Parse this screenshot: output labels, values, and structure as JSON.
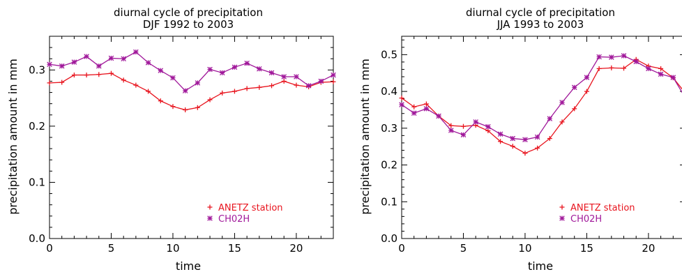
{
  "chart_data": [
    {
      "type": "line",
      "title": "diurnal cycle of precipitation",
      "subtitle": "DJF 1992 to 2003",
      "xlabel": "time",
      "ylabel": "precipitation amount in mm",
      "xlim": [
        0,
        23
      ],
      "ylim": [
        0.0,
        0.36
      ],
      "xticks": [
        0,
        5,
        10,
        15,
        20
      ],
      "xtick_labels": [
        "0",
        "5",
        "10",
        "15",
        "20"
      ],
      "yticks": [
        0.0,
        0.1,
        0.2,
        0.3
      ],
      "ytick_labels": [
        "0.0",
        "0.1",
        "0.2",
        "0.3"
      ],
      "grid": false,
      "legend_position": "bottom-right",
      "x": [
        0,
        1,
        2,
        3,
        4,
        5,
        6,
        7,
        8,
        9,
        10,
        11,
        12,
        13,
        14,
        15,
        16,
        17,
        18,
        19,
        20,
        21,
        22,
        23
      ],
      "series": [
        {
          "name": "ANETZ station",
          "color": "#e8141e",
          "marker": "plus",
          "values": [
            0.277,
            0.278,
            0.291,
            0.291,
            0.292,
            0.294,
            0.282,
            0.273,
            0.262,
            0.245,
            0.235,
            0.229,
            0.233,
            0.247,
            0.259,
            0.262,
            0.267,
            0.269,
            0.272,
            0.28,
            0.273,
            0.27,
            0.278,
            0.279
          ]
        },
        {
          "name": "CH02H",
          "color": "#a0189a",
          "marker": "asterisk",
          "values": [
            0.31,
            0.307,
            0.314,
            0.324,
            0.307,
            0.321,
            0.32,
            0.332,
            0.313,
            0.299,
            0.286,
            0.263,
            0.277,
            0.301,
            0.295,
            0.305,
            0.312,
            0.302,
            0.295,
            0.288,
            0.288,
            0.272,
            0.28,
            0.291
          ]
        }
      ]
    },
    {
      "type": "line",
      "title": "diurnal cycle of precipitation",
      "subtitle": "JJA 1993 to 2003",
      "xlabel": "time",
      "ylabel": "precipitation amount in mm",
      "xlim": [
        0,
        23
      ],
      "ylim": [
        0.0,
        0.55
      ],
      "xticks": [
        0,
        5,
        10,
        15,
        20
      ],
      "xtick_labels": [
        "0",
        "5",
        "10",
        "15",
        "20"
      ],
      "yticks": [
        0.0,
        0.1,
        0.2,
        0.3,
        0.4,
        0.5
      ],
      "ytick_labels": [
        "0.0",
        "0.1",
        "0.2",
        "0.3",
        "0.4",
        "0.5"
      ],
      "grid": false,
      "legend_position": "bottom-right",
      "x": [
        0,
        1,
        2,
        3,
        4,
        5,
        6,
        7,
        8,
        9,
        10,
        11,
        12,
        13,
        14,
        15,
        16,
        17,
        18,
        19,
        20,
        21,
        22,
        23
      ],
      "series": [
        {
          "name": "ANETZ station",
          "color": "#e8141e",
          "marker": "plus",
          "values": [
            0.382,
            0.358,
            0.366,
            0.333,
            0.307,
            0.305,
            0.308,
            0.293,
            0.264,
            0.251,
            0.232,
            0.246,
            0.272,
            0.317,
            0.353,
            0.4,
            0.462,
            0.464,
            0.463,
            0.487,
            0.469,
            0.462,
            0.437,
            0.395
          ]
        },
        {
          "name": "CH02H",
          "color": "#a0189a",
          "marker": "asterisk",
          "values": [
            0.364,
            0.341,
            0.353,
            0.333,
            0.294,
            0.282,
            0.317,
            0.304,
            0.284,
            0.272,
            0.269,
            0.276,
            0.326,
            0.37,
            0.411,
            0.438,
            0.494,
            0.493,
            0.497,
            0.481,
            0.462,
            0.447,
            0.438,
            0.382
          ]
        }
      ]
    }
  ]
}
